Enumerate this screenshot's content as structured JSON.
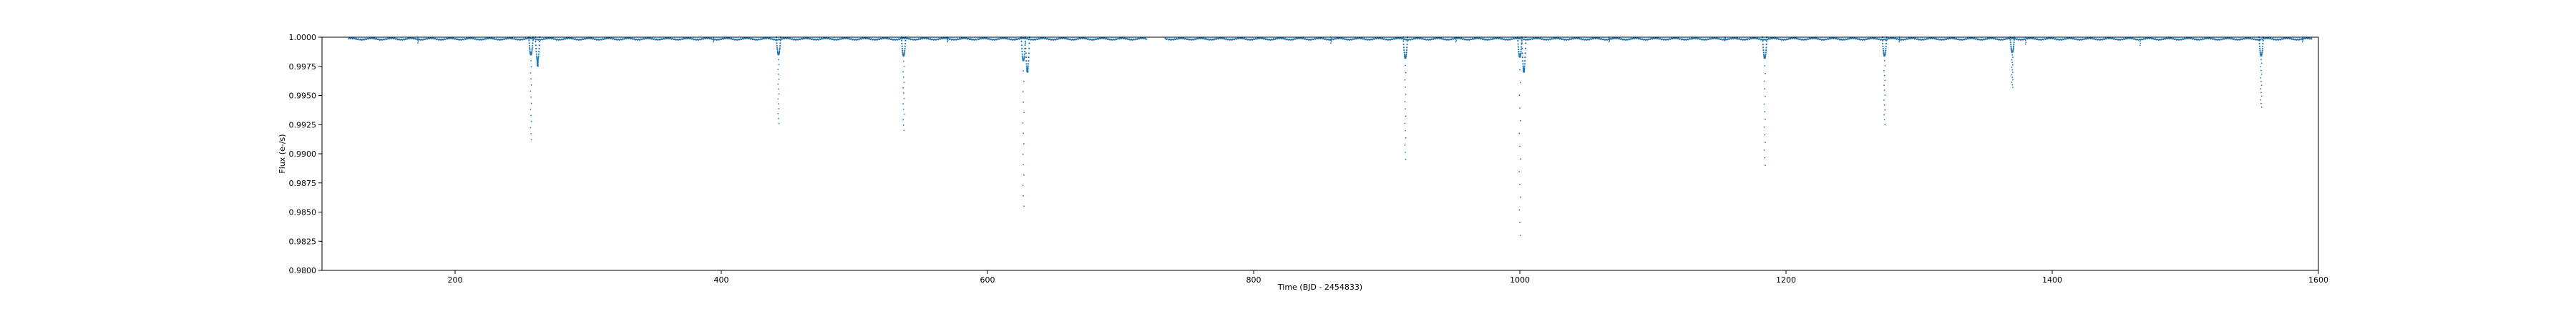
{
  "chart_data": {
    "type": "scatter",
    "title": "",
    "xlabel": "Time (BJD - 2454833)",
    "ylabel": "Flux (e-/s)",
    "xlim": [
      100,
      1600
    ],
    "ylim": [
      0.98,
      1.0
    ],
    "xticks": [
      200,
      400,
      600,
      800,
      1000,
      1200,
      1400,
      1600
    ],
    "xtick_labels": [
      "200",
      "400",
      "600",
      "800",
      "1000",
      "1200",
      "1400",
      "1600"
    ],
    "yticks": [
      0.98,
      0.9825,
      0.985,
      0.9875,
      0.99,
      0.9925,
      0.995,
      0.9975,
      1.0
    ],
    "ytick_labels": [
      "0.9800",
      "0.9825",
      "0.9850",
      "0.9875",
      "0.9900",
      "0.9925",
      "0.9950",
      "0.9975",
      "1.0000"
    ],
    "grid": false,
    "legend": "none",
    "color": "#1f77b4",
    "baseline": {
      "x_start": 120,
      "x_end": 1595,
      "y": 0.99985,
      "gaps": [
        [
          720,
          733
        ]
      ]
    },
    "transits": [
      {
        "x": 257,
        "depth_min": 0.9912,
        "core_depth": 0.9985
      },
      {
        "x": 262,
        "depth_min": 0.9975,
        "core_depth": 0.998
      },
      {
        "x": 443,
        "depth_min": 0.9926,
        "core_depth": 0.9985
      },
      {
        "x": 537,
        "depth_min": 0.992,
        "core_depth": 0.9984
      },
      {
        "x": 627,
        "depth_min": 0.9855,
        "core_depth": 0.998
      },
      {
        "x": 630,
        "depth_min": 0.997,
        "core_depth": 0.9972
      },
      {
        "x": 914,
        "depth_min": 0.9895,
        "core_depth": 0.9982
      },
      {
        "x": 1000,
        "depth_min": 0.983,
        "core_depth": 0.9983
      },
      {
        "x": 1003,
        "depth_min": 0.997,
        "core_depth": 0.9972
      },
      {
        "x": 1184,
        "depth_min": 0.989,
        "core_depth": 0.9982
      },
      {
        "x": 1274,
        "depth_min": 0.9925,
        "core_depth": 0.9984
      },
      {
        "x": 1370,
        "depth_min": 0.9957,
        "core_depth": 0.9987
      },
      {
        "x": 1557,
        "depth_min": 0.994,
        "core_depth": 0.9984
      }
    ],
    "minor_dips": [
      {
        "x": 172,
        "y": 0.9995
      },
      {
        "x": 394,
        "y": 0.9996
      },
      {
        "x": 570,
        "y": 0.9996
      },
      {
        "x": 858,
        "y": 0.9995
      },
      {
        "x": 952,
        "y": 0.9996
      },
      {
        "x": 1067,
        "y": 0.9996
      },
      {
        "x": 1154,
        "y": 0.9997
      },
      {
        "x": 1285,
        "y": 0.9996
      },
      {
        "x": 1380,
        "y": 0.9994
      },
      {
        "x": 1466,
        "y": 0.9993
      },
      {
        "x": 1588,
        "y": 0.9996
      }
    ]
  }
}
